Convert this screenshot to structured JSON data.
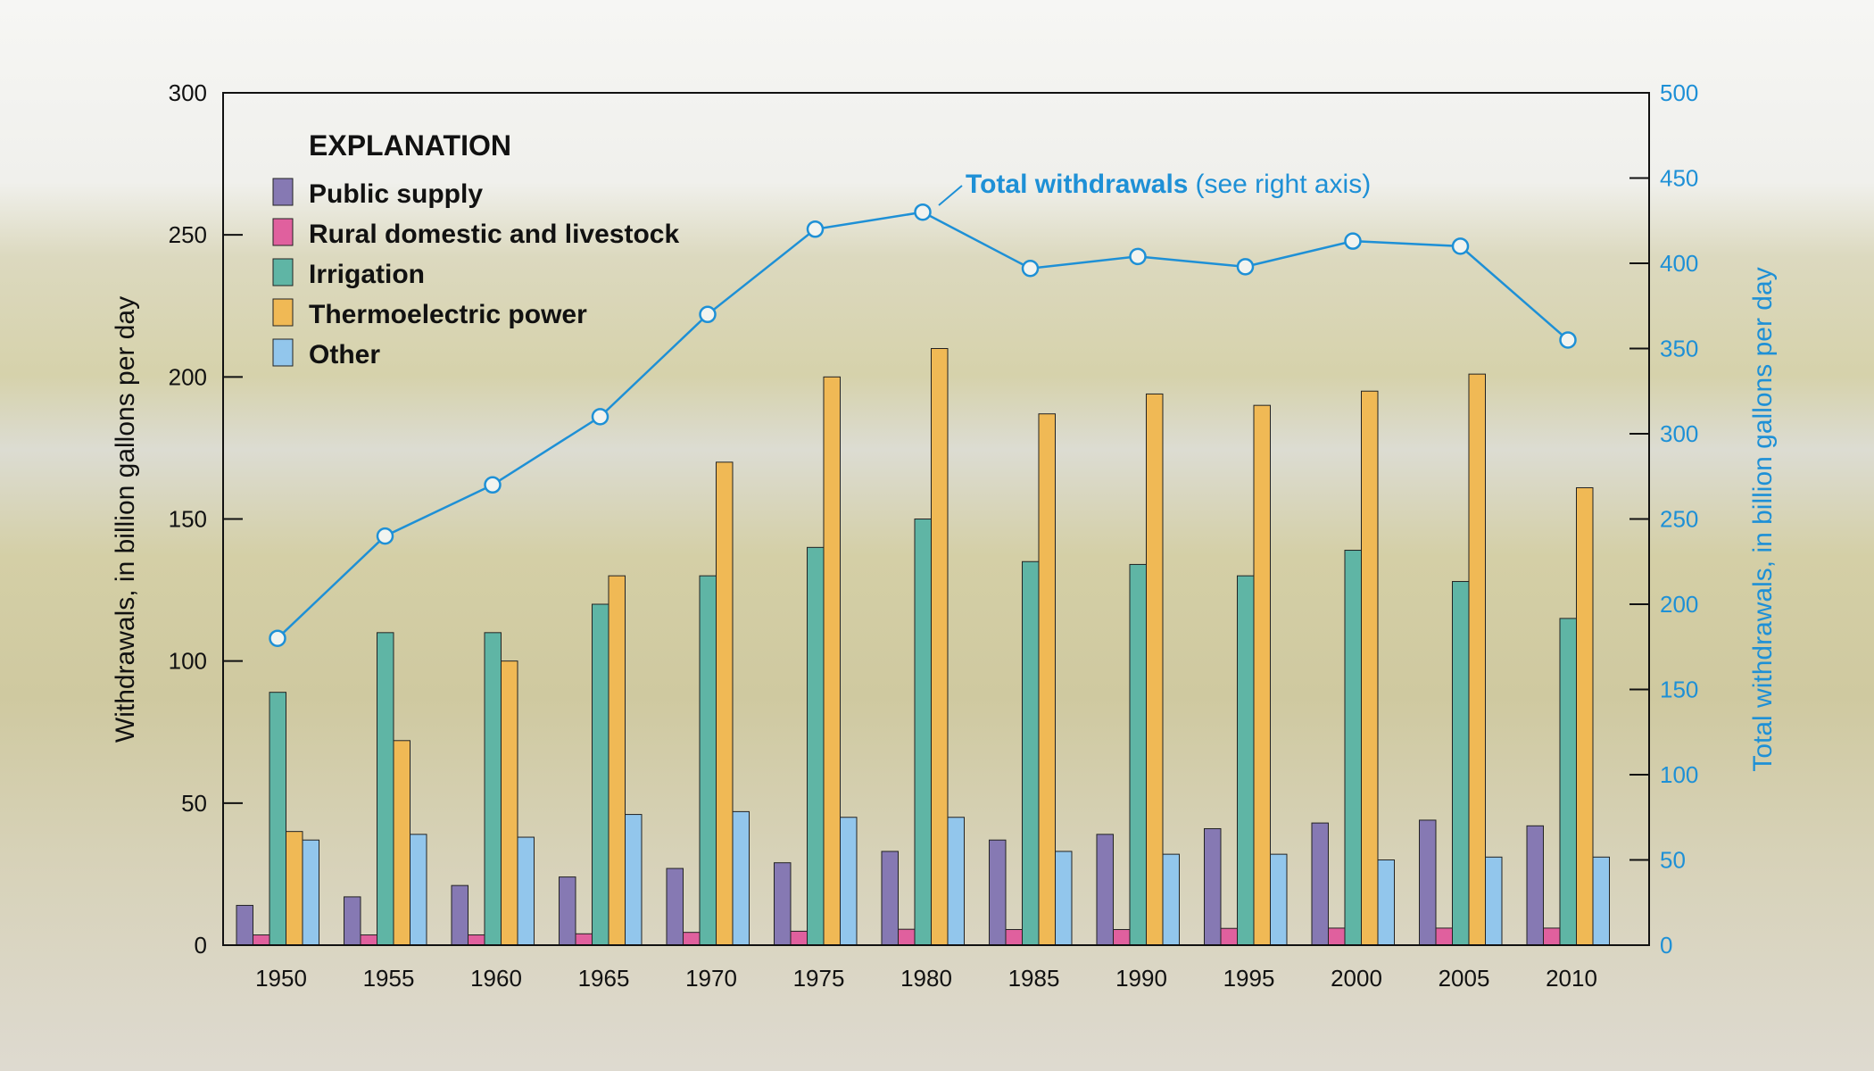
{
  "chart_data": {
    "type": "bar",
    "title": "",
    "categories": [
      "1950",
      "1955",
      "1960",
      "1965",
      "1970",
      "1975",
      "1980",
      "1985",
      "1990",
      "1995",
      "2000",
      "2005",
      "2010"
    ],
    "ylabel": "Withdrawals, in billion gallons per day",
    "ylabel_right": "Total withdrawals, in billion gallons per day",
    "ylim": [
      0,
      300
    ],
    "ylim_right": [
      0,
      500
    ],
    "yticks": [
      "0",
      "50",
      "100",
      "150",
      "200",
      "250",
      "300"
    ],
    "yticks_right": [
      "0",
      "50",
      "100",
      "150",
      "200",
      "250",
      "300",
      "350",
      "400",
      "450",
      "500"
    ],
    "legend_title": "EXPLANATION",
    "legend_position": "top-left",
    "series": [
      {
        "name": "Public supply",
        "color": "#8679b3",
        "values": [
          14,
          17,
          21,
          24,
          27,
          29,
          33,
          37,
          39,
          41,
          43,
          44,
          42
        ]
      },
      {
        "name": "Rural domestic and livestock",
        "color": "#e0609e",
        "values": [
          3.6,
          3.6,
          3.6,
          4,
          4.5,
          4.9,
          5.6,
          5.5,
          5.5,
          5.9,
          6,
          6,
          6
        ]
      },
      {
        "name": "Irrigation",
        "color": "#5fb5a5",
        "values": [
          89,
          110,
          110,
          120,
          130,
          140,
          150,
          135,
          134,
          130,
          139,
          128,
          115
        ]
      },
      {
        "name": "Thermoelectric power",
        "color": "#f0b955",
        "values": [
          40,
          72,
          100,
          130,
          170,
          200,
          210,
          187,
          194,
          190,
          195,
          201,
          161
        ]
      },
      {
        "name": "Other",
        "color": "#92c6ec",
        "values": [
          37,
          39,
          38,
          46,
          47,
          45,
          45,
          33,
          32,
          32,
          30,
          31,
          31
        ]
      }
    ],
    "line_series": {
      "name": "Total withdrawals",
      "annotation_bold": "Total withdrawals",
      "annotation_rest": "(see right axis)",
      "axis": "right",
      "color": "#1e90d6",
      "values": [
        180,
        240,
        270,
        310,
        370,
        420,
        430,
        397,
        404,
        398,
        413,
        410,
        355
      ]
    }
  }
}
